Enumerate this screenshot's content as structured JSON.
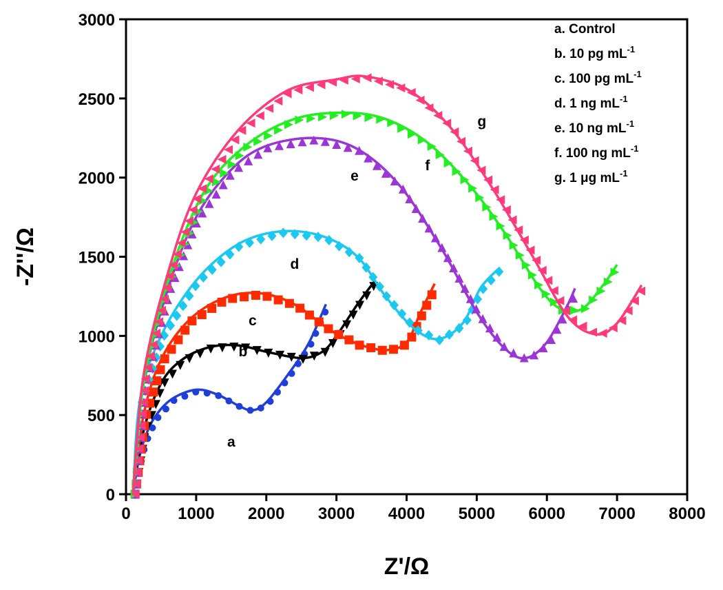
{
  "chart_data": {
    "type": "scatter",
    "title": "",
    "xlabel": "Z'/Ω",
    "ylabel": "-Z''/Ω",
    "xlim": [
      0,
      8000
    ],
    "ylim": [
      0,
      3000
    ],
    "xticks": [
      "0",
      "1000",
      "2000",
      "3000",
      "4000",
      "5000",
      "6000",
      "7000",
      "8000"
    ],
    "yticks": [
      "0",
      "500",
      "1000",
      "1500",
      "2000",
      "2500",
      "3000"
    ],
    "grid": false,
    "legend_position": "top-right",
    "series": [
      {
        "id": "a",
        "name": "a. Control",
        "sup": "",
        "color": "#1f3fd8",
        "marker": "circle",
        "label_at": [
          1500,
          300
        ],
        "points": [
          [
            100,
            0
          ],
          [
            150,
            150
          ],
          [
            250,
            330
          ],
          [
            400,
            480
          ],
          [
            650,
            600
          ],
          [
            1000,
            660
          ],
          [
            1300,
            630
          ],
          [
            1600,
            560
          ],
          [
            1800,
            530
          ],
          [
            2000,
            580
          ],
          [
            2300,
            750
          ],
          [
            2600,
            950
          ],
          [
            2850,
            1200
          ]
        ]
      },
      {
        "id": "b",
        "name": "b. 10 pg mL",
        "sup": "-1",
        "color": "#000000",
        "marker": "triangle-down",
        "label_at": [
          1668,
          870
        ],
        "points": [
          [
            100,
            0
          ],
          [
            250,
            400
          ],
          [
            500,
            700
          ],
          [
            800,
            850
          ],
          [
            1200,
            930
          ],
          [
            1600,
            940
          ],
          [
            2000,
            900
          ],
          [
            2500,
            860
          ],
          [
            2800,
            900
          ],
          [
            3000,
            1000
          ],
          [
            3300,
            1200
          ],
          [
            3550,
            1350
          ]
        ]
      },
      {
        "id": "c",
        "name": "c. 100 pg mL",
        "sup": "-1",
        "color": "#ff2a00",
        "marker": "square",
        "label_at": [
          1805,
          1067
        ],
        "points": [
          [
            100,
            0
          ],
          [
            250,
            500
          ],
          [
            500,
            850
          ],
          [
            900,
            1100
          ],
          [
            1400,
            1240
          ],
          [
            1900,
            1270
          ],
          [
            2400,
            1200
          ],
          [
            2900,
            1040
          ],
          [
            3300,
            950
          ],
          [
            3700,
            910
          ],
          [
            4000,
            960
          ],
          [
            4200,
            1150
          ],
          [
            4400,
            1330
          ]
        ]
      },
      {
        "id": "d",
        "name": "d. 1 ng mL",
        "sup": "-1",
        "color": "#1ac8f0",
        "marker": "diamond",
        "label_at": [
          2404,
          1424
        ],
        "points": [
          [
            100,
            0
          ],
          [
            200,
            600
          ],
          [
            500,
            1000
          ],
          [
            1000,
            1350
          ],
          [
            1600,
            1580
          ],
          [
            2200,
            1660
          ],
          [
            2800,
            1630
          ],
          [
            3300,
            1500
          ],
          [
            3700,
            1250
          ],
          [
            4100,
            1050
          ],
          [
            4450,
            980
          ],
          [
            4800,
            1080
          ],
          [
            5050,
            1300
          ],
          [
            5300,
            1420
          ]
        ]
      },
      {
        "id": "e",
        "name": "e. 10 ng mL",
        "sup": "-1",
        "color": "#9b35d6",
        "marker": "triangle-up",
        "label_at": [
          3258,
          1981
        ],
        "points": [
          [
            100,
            0
          ],
          [
            250,
            700
          ],
          [
            600,
            1300
          ],
          [
            1000,
            1750
          ],
          [
            1500,
            2050
          ],
          [
            2000,
            2200
          ],
          [
            2700,
            2250
          ],
          [
            3300,
            2180
          ],
          [
            3900,
            1950
          ],
          [
            4500,
            1550
          ],
          [
            5000,
            1150
          ],
          [
            5400,
            920
          ],
          [
            5700,
            860
          ],
          [
            6000,
            960
          ],
          [
            6300,
            1200
          ],
          [
            6400,
            1300
          ]
        ]
      },
      {
        "id": "f",
        "name": "f. 100 ng mL",
        "sup": "-1",
        "color": "#22ee22",
        "marker": "triangle-right",
        "label_at": [
          4298,
          2046
        ],
        "points": [
          [
            100,
            0
          ],
          [
            250,
            700
          ],
          [
            600,
            1350
          ],
          [
            1100,
            1900
          ],
          [
            1700,
            2200
          ],
          [
            2400,
            2370
          ],
          [
            3100,
            2410
          ],
          [
            3700,
            2370
          ],
          [
            4300,
            2220
          ],
          [
            4900,
            1950
          ],
          [
            5400,
            1650
          ],
          [
            5900,
            1300
          ],
          [
            6200,
            1170
          ],
          [
            6500,
            1170
          ],
          [
            6800,
            1320
          ],
          [
            7000,
            1450
          ]
        ]
      },
      {
        "id": "g",
        "name": "g. 1 μg mL",
        "sup": "-1",
        "color": "#ff3a7a",
        "marker": "triangle-left",
        "label_at": [
          5073,
          2325
        ],
        "points": [
          [
            100,
            0
          ],
          [
            250,
            750
          ],
          [
            600,
            1400
          ],
          [
            1000,
            1900
          ],
          [
            1600,
            2300
          ],
          [
            2300,
            2550
          ],
          [
            3000,
            2620
          ],
          [
            3400,
            2640
          ],
          [
            4000,
            2560
          ],
          [
            4600,
            2330
          ],
          [
            5200,
            1950
          ],
          [
            5800,
            1500
          ],
          [
            6300,
            1120
          ],
          [
            6700,
            1010
          ],
          [
            7000,
            1080
          ],
          [
            7350,
            1320
          ]
        ]
      }
    ]
  }
}
